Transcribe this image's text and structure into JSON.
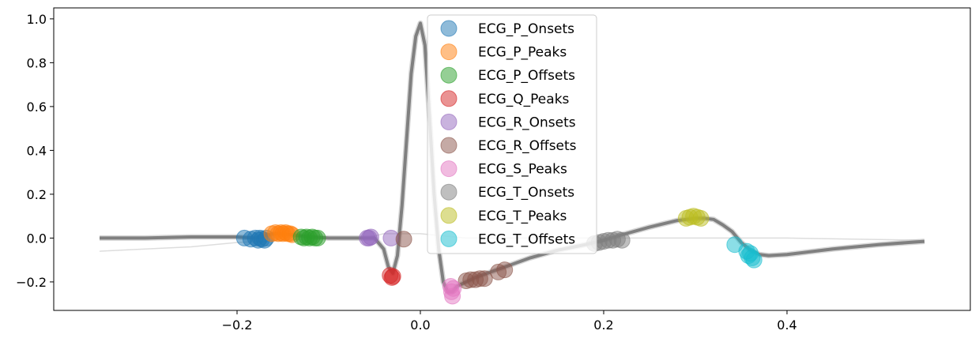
{
  "chart_data": {
    "type": "line",
    "title": "",
    "xlabel": "",
    "ylabel": "",
    "xlim": [
      -0.4,
      0.6
    ],
    "ylim": [
      -0.33,
      1.05
    ],
    "xticks": [
      -0.2,
      0.0,
      0.2,
      0.4
    ],
    "xtick_labels": [
      "−0.2",
      "0.0",
      "0.2",
      "0.4"
    ],
    "yticks": [
      -0.2,
      0.0,
      0.2,
      0.4,
      0.6,
      0.8,
      1.0
    ],
    "ytick_labels": [
      "−0.2",
      "0.0",
      "0.2",
      "0.4",
      "0.6",
      "0.8",
      "1.0"
    ],
    "grid": false,
    "legend_position": "top-center",
    "waveform": {
      "color": "#808080",
      "x": [
        -0.35,
        -0.3,
        -0.25,
        -0.2,
        -0.18,
        -0.16,
        -0.14,
        -0.12,
        -0.1,
        -0.08,
        -0.06,
        -0.05,
        -0.04,
        -0.035,
        -0.03,
        -0.025,
        -0.02,
        -0.015,
        -0.01,
        -0.005,
        0.0,
        0.005,
        0.01,
        0.015,
        0.02,
        0.025,
        0.03,
        0.035,
        0.04,
        0.05,
        0.06,
        0.08,
        0.1,
        0.12,
        0.15,
        0.18,
        0.2,
        0.22,
        0.25,
        0.28,
        0.3,
        0.31,
        0.32,
        0.33,
        0.34,
        0.35,
        0.36,
        0.37,
        0.38,
        0.4,
        0.45,
        0.5,
        0.55
      ],
      "y": [
        0.0,
        0.0,
        0.005,
        0.005,
        0.0,
        0.02,
        0.015,
        0.005,
        0.0,
        0.0,
        0.0,
        0.0,
        -0.05,
        -0.13,
        -0.16,
        -0.08,
        0.15,
        0.45,
        0.75,
        0.92,
        0.98,
        0.88,
        0.55,
        0.2,
        -0.05,
        -0.2,
        -0.245,
        -0.245,
        -0.22,
        -0.2,
        -0.18,
        -0.15,
        -0.12,
        -0.09,
        -0.055,
        -0.03,
        -0.01,
        0.015,
        0.05,
        0.08,
        0.09,
        0.09,
        0.085,
        0.06,
        0.03,
        -0.02,
        -0.055,
        -0.075,
        -0.08,
        -0.075,
        -0.05,
        -0.03,
        -0.015
      ]
    },
    "faint_baseline": {
      "color": "#dddddd",
      "x": [
        -0.35,
        -0.3,
        -0.25,
        -0.2,
        -0.15,
        -0.1,
        -0.06,
        -0.04,
        0.0,
        0.05,
        0.1,
        0.15,
        0.2,
        0.3,
        0.4,
        0.55
      ],
      "y": [
        -0.06,
        -0.05,
        -0.04,
        -0.02,
        -0.01,
        0.0,
        0.0,
        0.02,
        0.02,
        0.0,
        0.0,
        0.0,
        0.0,
        0.0,
        0.0,
        -0.01
      ]
    },
    "series": [
      {
        "name": "ECG_P_Onsets",
        "color": "#1f77b4",
        "x": [
          -0.192,
          -0.185,
          -0.18,
          -0.177,
          -0.175,
          -0.173,
          -0.17,
          -0.168
        ],
        "y": [
          0.0,
          -0.005,
          0.0,
          -0.01,
          0.0,
          -0.005,
          -0.01,
          0.0
        ]
      },
      {
        "name": "ECG_P_Peaks",
        "color": "#ff7f0e",
        "x": [
          -0.162,
          -0.158,
          -0.155,
          -0.152,
          -0.15,
          -0.147,
          -0.145,
          -0.142,
          -0.14
        ],
        "y": [
          0.02,
          0.025,
          0.02,
          0.025,
          0.02,
          0.025,
          0.02,
          0.02,
          0.015
        ]
      },
      {
        "name": "ECG_P_Offsets",
        "color": "#2ca02c",
        "x": [
          -0.13,
          -0.127,
          -0.124,
          -0.121,
          -0.118,
          -0.115,
          -0.112
        ],
        "y": [
          0.005,
          0.0,
          0.005,
          0.0,
          0.005,
          0.0,
          0.0
        ]
      },
      {
        "name": "ECG_Q_Peaks",
        "color": "#d62728",
        "x": [
          -0.033,
          -0.031,
          -0.03
        ],
        "y": [
          -0.17,
          -0.18,
          -0.175
        ]
      },
      {
        "name": "ECG_R_Onsets",
        "color": "#9467bd",
        "x": [
          -0.058,
          -0.056,
          -0.054,
          -0.032
        ],
        "y": [
          0.0,
          0.0,
          0.005,
          0.0
        ]
      },
      {
        "name": "ECG_R_Offsets",
        "color": "#8c564b",
        "x": [
          -0.018,
          0.05,
          0.055,
          0.06,
          0.065,
          0.07,
          0.085,
          0.092
        ],
        "y": [
          -0.005,
          -0.195,
          -0.19,
          -0.19,
          -0.185,
          -0.185,
          -0.155,
          -0.145
        ]
      },
      {
        "name": "ECG_S_Peaks",
        "color": "#e377c2",
        "x": [
          0.033,
          0.034,
          0.035,
          0.036
        ],
        "y": [
          -0.22,
          -0.245,
          -0.265,
          -0.23
        ]
      },
      {
        "name": "ECG_T_Onsets",
        "color": "#7f7f7f",
        "x": [
          0.19,
          0.195,
          0.2,
          0.205,
          0.21,
          0.215,
          0.22
        ],
        "y": [
          -0.025,
          -0.02,
          -0.015,
          -0.01,
          -0.01,
          -0.005,
          -0.01
        ]
      },
      {
        "name": "ECG_T_Peaks",
        "color": "#bcbd22",
        "x": [
          0.29,
          0.294,
          0.298,
          0.302,
          0.306
        ],
        "y": [
          0.09,
          0.095,
          0.1,
          0.095,
          0.09
        ]
      },
      {
        "name": "ECG_T_Offsets",
        "color": "#17becf",
        "x": [
          0.343,
          0.356,
          0.358,
          0.36,
          0.362,
          0.364
        ],
        "y": [
          -0.03,
          -0.06,
          -0.08,
          -0.07,
          -0.09,
          -0.1
        ]
      }
    ]
  }
}
